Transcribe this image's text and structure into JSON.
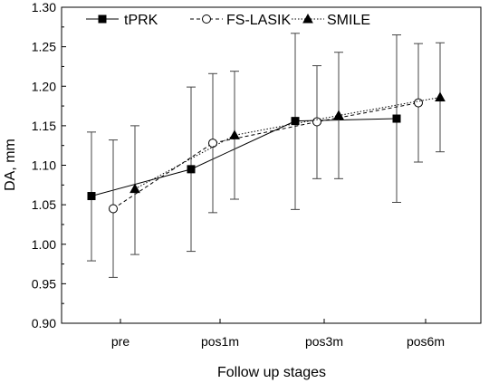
{
  "chart_data": {
    "type": "line",
    "categories": [
      "pre",
      "pos1m",
      "pos3m",
      "pos6m"
    ],
    "xlabel": "Follow up stages",
    "ylabel": "DA, mm",
    "ylim": [
      0.9,
      1.3
    ],
    "yticks": [
      "0.90",
      "0.95",
      "1.00",
      "1.05",
      "1.10",
      "1.15",
      "1.20",
      "1.25",
      "1.30"
    ],
    "grid": false,
    "legend_position": "top-left",
    "series": [
      {
        "name": "tPRK",
        "marker": "filled-square",
        "line_style": "solid",
        "values": [
          1.061,
          1.095,
          1.156,
          1.159
        ],
        "err_low": [
          0.979,
          0.991,
          1.044,
          1.053
        ],
        "err_high": [
          1.142,
          1.199,
          1.267,
          1.265
        ]
      },
      {
        "name": "FS-LASIK",
        "marker": "open-circle",
        "line_style": "dashed",
        "values": [
          1.045,
          1.128,
          1.155,
          1.179
        ],
        "err_low": [
          0.958,
          1.04,
          1.083,
          1.104
        ],
        "err_high": [
          1.132,
          1.216,
          1.226,
          1.254
        ]
      },
      {
        "name": "SMILE",
        "marker": "filled-triangle",
        "line_style": "dotted",
        "values": [
          1.07,
          1.138,
          1.163,
          1.186
        ],
        "err_low": [
          0.987,
          1.057,
          1.083,
          1.117
        ],
        "err_high": [
          1.15,
          1.219,
          1.243,
          1.255
        ]
      }
    ]
  }
}
